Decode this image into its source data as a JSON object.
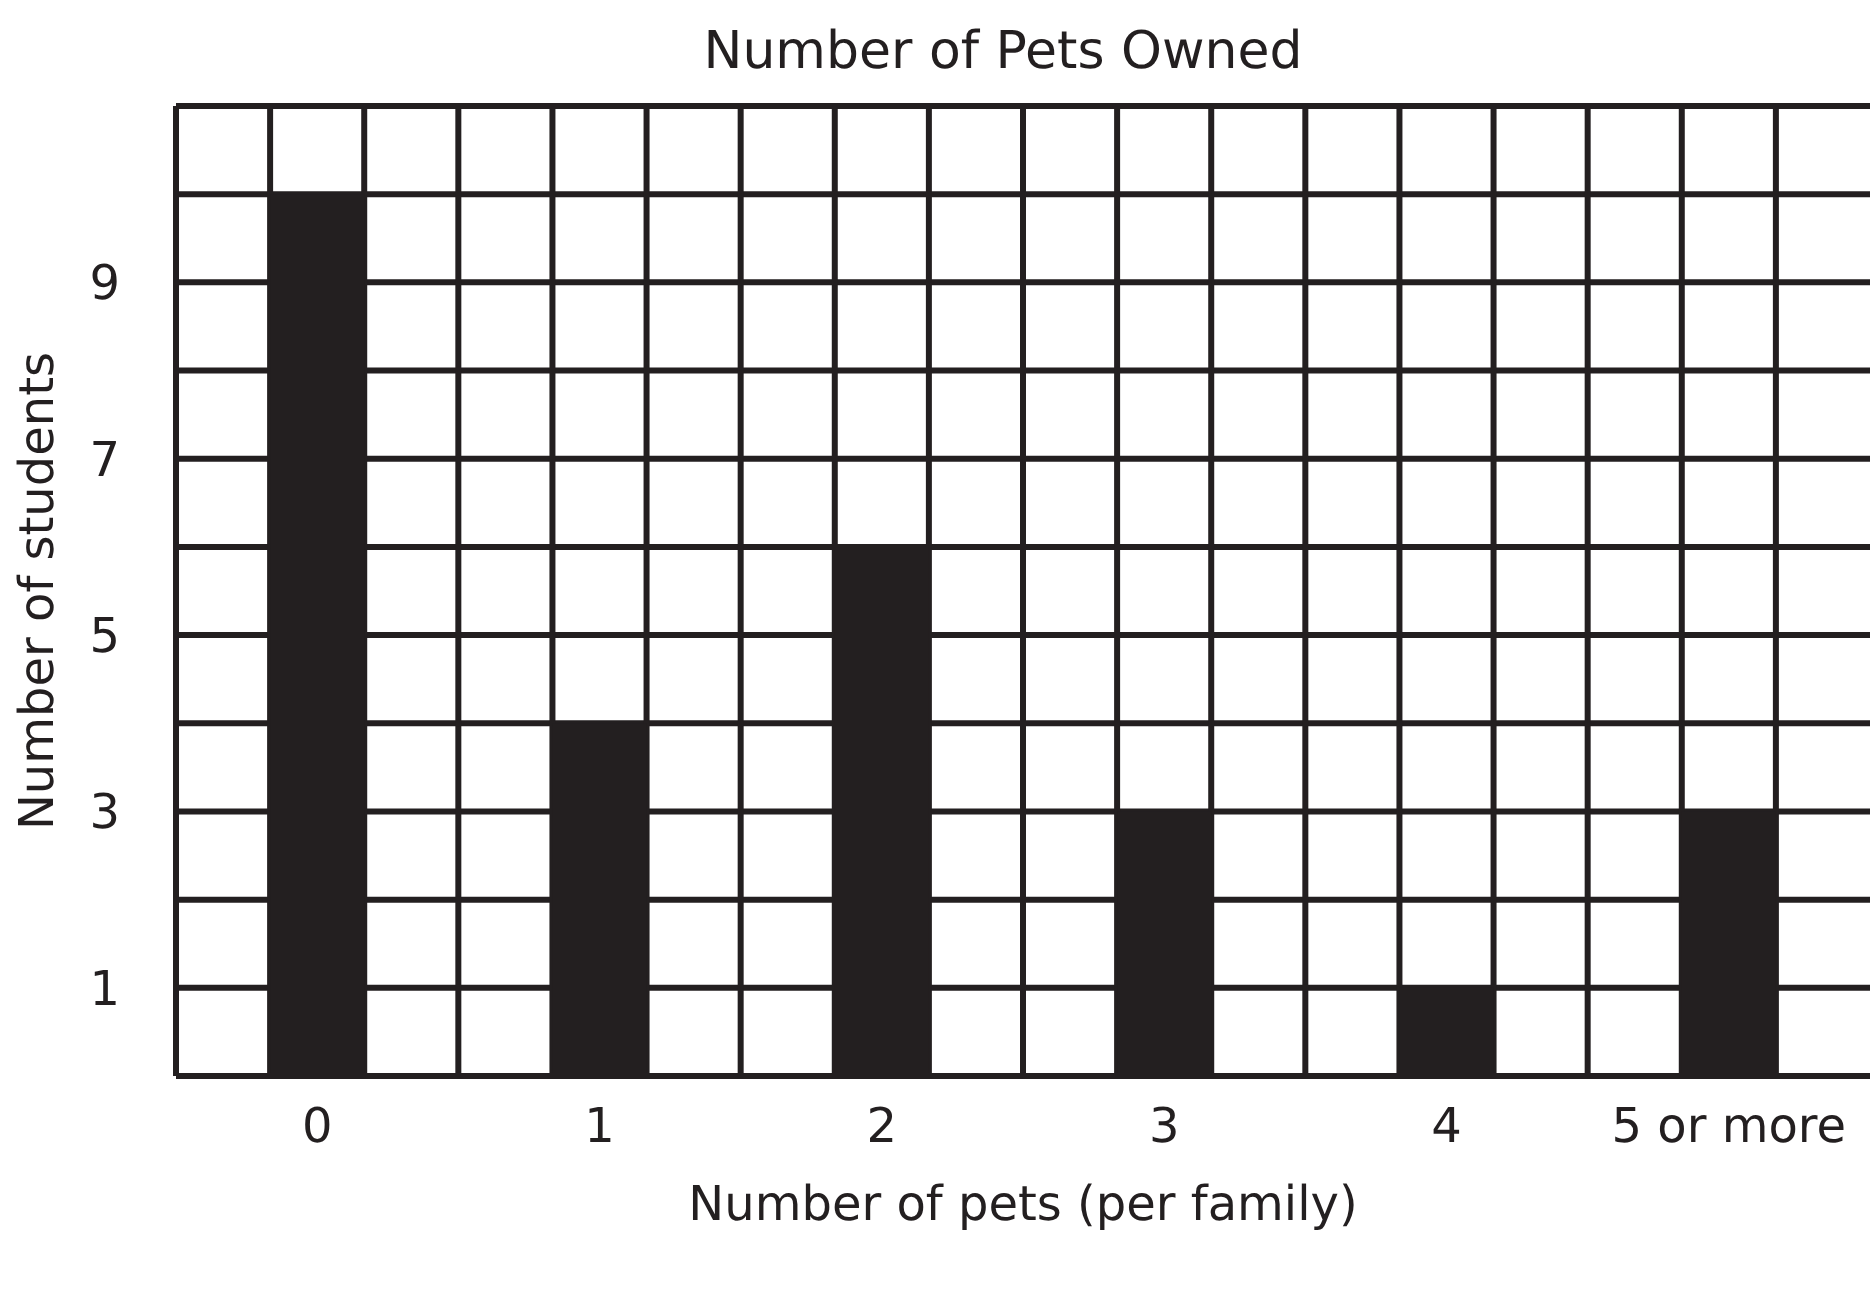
{
  "chart_data": {
    "type": "bar",
    "title": "Number of Pets Owned",
    "xlabel": "Number of pets (per family)",
    "ylabel": "Number of students",
    "categories": [
      "0",
      "1",
      "2",
      "3",
      "4",
      "5 or more"
    ],
    "values": [
      10,
      4,
      6,
      3,
      1,
      3
    ],
    "color": "#231f20",
    "ylim": [
      0,
      11
    ],
    "yticks": [
      1,
      {
        "value": 2,
        "label": null
      },
      3,
      {
        "value": 4,
        "label": null
      },
      5,
      {
        "value": 6,
        "label": null
      },
      7,
      {
        "value": 8,
        "label": null
      },
      9,
      {
        "value": 10,
        "label": null
      }
    ],
    "grid": true
  }
}
